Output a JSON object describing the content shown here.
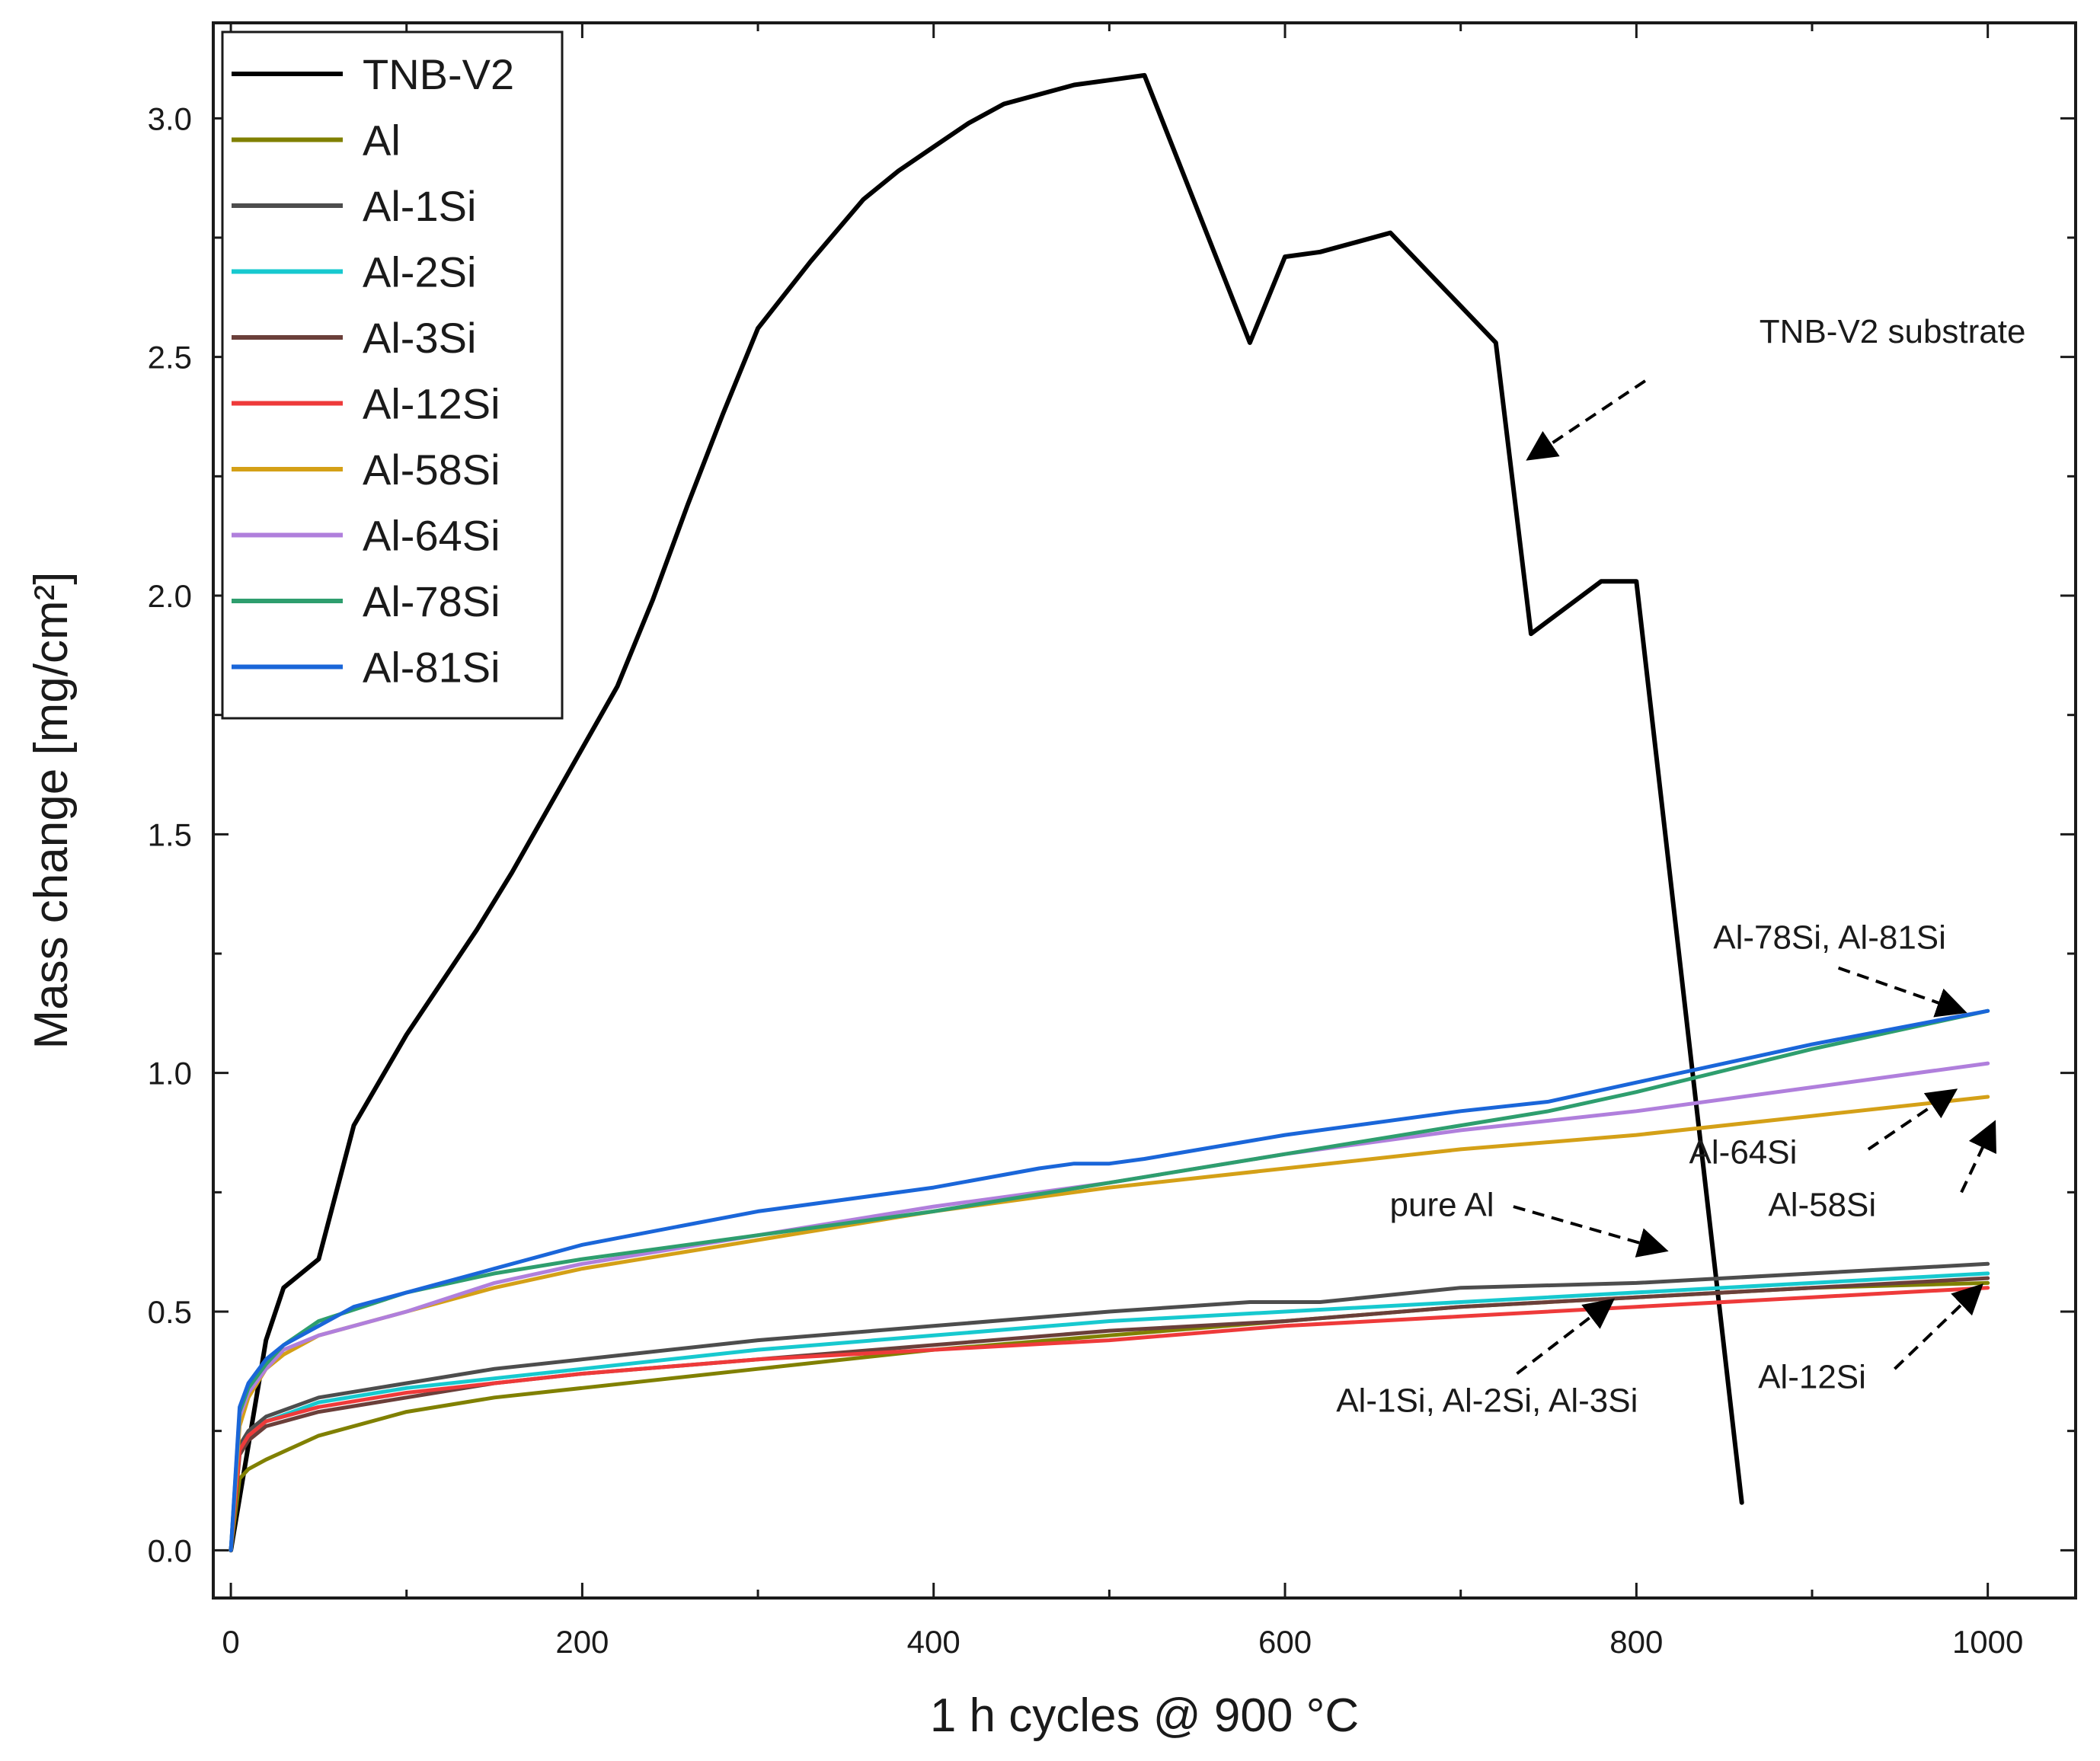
{
  "chart_data": {
    "type": "line",
    "title": "",
    "xlabel": "1 h cycles @ 900 °C",
    "ylabel": "Mass change [mg/cm²]",
    "xlim": [
      -10,
      1050
    ],
    "ylim": [
      -0.1,
      3.2
    ],
    "xticks": [
      0,
      200,
      400,
      600,
      800,
      1000
    ],
    "xtick_labels": [
      "0",
      "200",
      "400",
      "600",
      "800",
      "1000"
    ],
    "yticks": [
      0.0,
      0.5,
      1.0,
      1.5,
      2.0,
      2.5,
      3.0
    ],
    "ytick_labels": [
      "0.0",
      "0.5",
      "1.0",
      "1.5",
      "2.0",
      "2.5",
      "3.0"
    ],
    "grid": false,
    "legend_position": "top-left",
    "series": [
      {
        "name": "TNB-V2",
        "color": "#000000",
        "x": [
          0,
          20,
          30,
          50,
          70,
          100,
          140,
          160,
          200,
          220,
          240,
          260,
          280,
          300,
          330,
          360,
          380,
          400,
          420,
          440,
          460,
          480,
          500,
          520,
          580,
          600,
          620,
          640,
          660,
          720,
          740,
          780,
          800,
          860
        ],
        "y": [
          0.0,
          0.44,
          0.55,
          0.61,
          0.89,
          1.08,
          1.3,
          1.42,
          1.68,
          1.81,
          1.99,
          2.19,
          2.38,
          2.56,
          2.7,
          2.83,
          2.89,
          2.94,
          2.99,
          3.03,
          3.05,
          3.07,
          3.08,
          3.09,
          2.53,
          2.71,
          2.72,
          2.74,
          2.76,
          2.53,
          1.92,
          2.03,
          2.03,
          0.1
        ]
      },
      {
        "name": "Al",
        "color": "#808000",
        "x": [
          0,
          5,
          10,
          20,
          50,
          100,
          150,
          200,
          300,
          400,
          500,
          600,
          700,
          800,
          900,
          1000
        ],
        "y": [
          0.0,
          0.15,
          0.17,
          0.19,
          0.24,
          0.29,
          0.32,
          0.34,
          0.38,
          0.42,
          0.45,
          0.48,
          0.51,
          0.53,
          0.55,
          0.56
        ]
      },
      {
        "name": "Al-1Si",
        "color": "#4d4d4d",
        "x": [
          0,
          5,
          10,
          20,
          50,
          100,
          150,
          200,
          300,
          400,
          500,
          580,
          620,
          700,
          800,
          900,
          1000
        ],
        "y": [
          0.0,
          0.22,
          0.25,
          0.28,
          0.32,
          0.35,
          0.38,
          0.4,
          0.44,
          0.47,
          0.5,
          0.52,
          0.52,
          0.55,
          0.56,
          0.58,
          0.6
        ]
      },
      {
        "name": "Al-2Si",
        "color": "#17c9cf",
        "x": [
          0,
          5,
          10,
          20,
          50,
          100,
          150,
          200,
          300,
          400,
          500,
          600,
          700,
          800,
          900,
          1000
        ],
        "y": [
          0.0,
          0.21,
          0.24,
          0.27,
          0.31,
          0.34,
          0.36,
          0.38,
          0.42,
          0.45,
          0.48,
          0.5,
          0.52,
          0.54,
          0.56,
          0.58
        ]
      },
      {
        "name": "Al-3Si",
        "color": "#6b3f3a",
        "x": [
          0,
          5,
          10,
          20,
          50,
          100,
          150,
          200,
          300,
          400,
          500,
          600,
          700,
          800,
          900,
          1000
        ],
        "y": [
          0.0,
          0.2,
          0.23,
          0.26,
          0.29,
          0.32,
          0.35,
          0.37,
          0.4,
          0.43,
          0.46,
          0.48,
          0.51,
          0.53,
          0.55,
          0.57
        ]
      },
      {
        "name": "Al-12Si",
        "color": "#ee3a3a",
        "x": [
          0,
          5,
          10,
          20,
          50,
          100,
          150,
          200,
          300,
          400,
          500,
          600,
          700,
          800,
          900,
          1000
        ],
        "y": [
          0.0,
          0.21,
          0.24,
          0.27,
          0.3,
          0.33,
          0.35,
          0.37,
          0.4,
          0.42,
          0.44,
          0.47,
          0.49,
          0.51,
          0.53,
          0.55
        ]
      },
      {
        "name": "Al-58Si",
        "color": "#d4a017",
        "x": [
          0,
          5,
          10,
          20,
          30,
          50,
          100,
          150,
          200,
          300,
          400,
          500,
          600,
          700,
          800,
          900,
          1000
        ],
        "y": [
          0.0,
          0.26,
          0.32,
          0.38,
          0.41,
          0.45,
          0.5,
          0.55,
          0.59,
          0.65,
          0.71,
          0.76,
          0.8,
          0.84,
          0.87,
          0.91,
          0.95
        ]
      },
      {
        "name": "Al-64Si",
        "color": "#b07fdc",
        "x": [
          0,
          5,
          10,
          20,
          30,
          50,
          100,
          150,
          200,
          300,
          400,
          500,
          600,
          700,
          800,
          900,
          1000
        ],
        "y": [
          0.0,
          0.28,
          0.33,
          0.38,
          0.42,
          0.45,
          0.5,
          0.56,
          0.6,
          0.66,
          0.72,
          0.77,
          0.83,
          0.88,
          0.92,
          0.97,
          1.02
        ]
      },
      {
        "name": "Al-78Si",
        "color": "#2e9e6e",
        "x": [
          0,
          5,
          10,
          20,
          30,
          50,
          100,
          150,
          200,
          300,
          400,
          500,
          600,
          700,
          750,
          800,
          900,
          1000
        ],
        "y": [
          0.0,
          0.29,
          0.34,
          0.39,
          0.43,
          0.48,
          0.54,
          0.58,
          0.61,
          0.66,
          0.71,
          0.77,
          0.83,
          0.89,
          0.92,
          0.96,
          1.05,
          1.13
        ]
      },
      {
        "name": "Al-81Si",
        "color": "#1a66d9",
        "x": [
          0,
          5,
          10,
          20,
          30,
          50,
          70,
          100,
          150,
          200,
          300,
          400,
          460,
          480,
          500,
          520,
          600,
          700,
          750,
          800,
          900,
          1000
        ],
        "y": [
          0.0,
          0.3,
          0.35,
          0.4,
          0.43,
          0.47,
          0.51,
          0.54,
          0.59,
          0.64,
          0.71,
          0.76,
          0.8,
          0.81,
          0.81,
          0.82,
          0.87,
          0.92,
          0.94,
          0.98,
          1.06,
          1.13
        ]
      }
    ],
    "annotations": [
      {
        "text": "TNB-V2 substrate",
        "text_at": [
          870,
          2.53
        ],
        "text_anchor": "start",
        "arrow_from": [
          805,
          2.45
        ],
        "arrow_to": [
          740,
          2.29
        ]
      },
      {
        "text": "Al-78Si, Al-81Si",
        "text_at": [
          910,
          1.26
        ],
        "text_anchor": "middle",
        "arrow_from": [
          915,
          1.22
        ],
        "arrow_to": [
          985,
          1.13
        ]
      },
      {
        "text": "Al-64Si",
        "text_at": [
          830,
          0.81
        ],
        "text_anchor": "start",
        "arrow_from": [
          932,
          0.84
        ],
        "arrow_to": [
          980,
          0.96
        ]
      },
      {
        "text": "Al-58Si",
        "text_at": [
          875,
          0.7
        ],
        "text_anchor": "start",
        "arrow_from": [
          985,
          0.75
        ],
        "arrow_to": [
          1003,
          0.89
        ]
      },
      {
        "text": "pure Al",
        "text_at": [
          719,
          0.7
        ],
        "text_anchor": "end",
        "arrow_from": [
          730,
          0.72
        ],
        "arrow_to": [
          815,
          0.63
        ]
      },
      {
        "text": "Al-1Si, Al-2Si, Al-3Si",
        "text_at": [
          715,
          0.29
        ],
        "text_anchor": "middle",
        "arrow_from": [
          732,
          0.37
        ],
        "arrow_to": [
          785,
          0.52
        ]
      },
      {
        "text": "Al-12Si",
        "text_at": [
          900,
          0.34
        ],
        "text_anchor": "middle",
        "arrow_from": [
          947,
          0.38
        ],
        "arrow_to": [
          995,
          0.55
        ]
      }
    ]
  }
}
